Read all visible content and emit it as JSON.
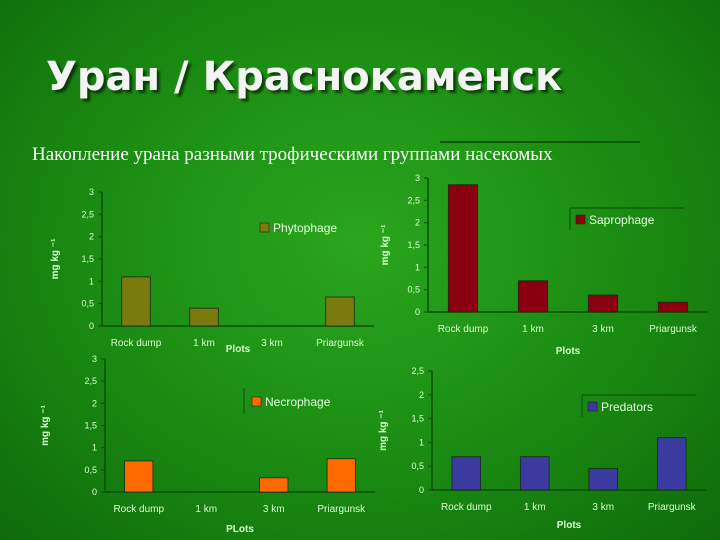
{
  "title": "Уран / Краснокаменск",
  "subtitle": "Накопление урана разными трофическими группами насекомых",
  "chart_data": [
    {
      "type": "bar",
      "categories": [
        "Rock dump",
        "1 km",
        "3 km",
        "Priargunsk"
      ],
      "series": [
        {
          "name": "Phytophage",
          "values": [
            1.1,
            0.4,
            0,
            0.65
          ]
        }
      ],
      "xlabel": "Plots",
      "ylabel": "mg kg ⁻¹",
      "ylim": [
        0,
        3
      ],
      "ticks": [
        "0",
        "0,5",
        "1",
        "1,5",
        "2",
        "2,5",
        "3"
      ],
      "color": "#7a7a0e",
      "legend_position": "top-right"
    },
    {
      "type": "bar",
      "categories": [
        "Rock dump",
        "1  km",
        "3 km",
        "Priargunsk"
      ],
      "series": [
        {
          "name": "Saprophage",
          "values": [
            2.85,
            0.7,
            0.38,
            0.22
          ]
        }
      ],
      "xlabel": "Plots",
      "ylabel": "mg kg ⁻¹",
      "ylim": [
        0,
        3
      ],
      "ticks": [
        "0",
        "0,5",
        "1",
        "1,5",
        "2",
        "2,5",
        "3"
      ],
      "color": "#8b0010",
      "legend_position": "top-right"
    },
    {
      "type": "bar",
      "categories": [
        "Rock dump",
        "1 km",
        "3 km",
        "Priargunsk"
      ],
      "series": [
        {
          "name": "Necrophage",
          "values": [
            0.7,
            0,
            0.32,
            0.75
          ]
        }
      ],
      "xlabel": "PLots",
      "ylabel": "mg kg ⁻¹",
      "ylim": [
        0,
        3
      ],
      "ticks": [
        "0",
        "0,5",
        "1",
        "1,5",
        "2",
        "2,5",
        "3"
      ],
      "color": "#ff6a00",
      "legend_position": "top-right"
    },
    {
      "type": "bar",
      "categories": [
        "Rock dump",
        "1 km",
        "3 km",
        "Priargunsk"
      ],
      "series": [
        {
          "name": "Predators",
          "values": [
            0.7,
            0.7,
            0.45,
            1.1
          ]
        }
      ],
      "xlabel": "Plots",
      "ylabel": "mg kg ⁻¹",
      "ylim": [
        0,
        2.5
      ],
      "ticks": [
        "0",
        "0,5",
        "1",
        "1,5",
        "2",
        "2,5"
      ],
      "color": "#3a3aa0",
      "legend_position": "top-right"
    }
  ]
}
